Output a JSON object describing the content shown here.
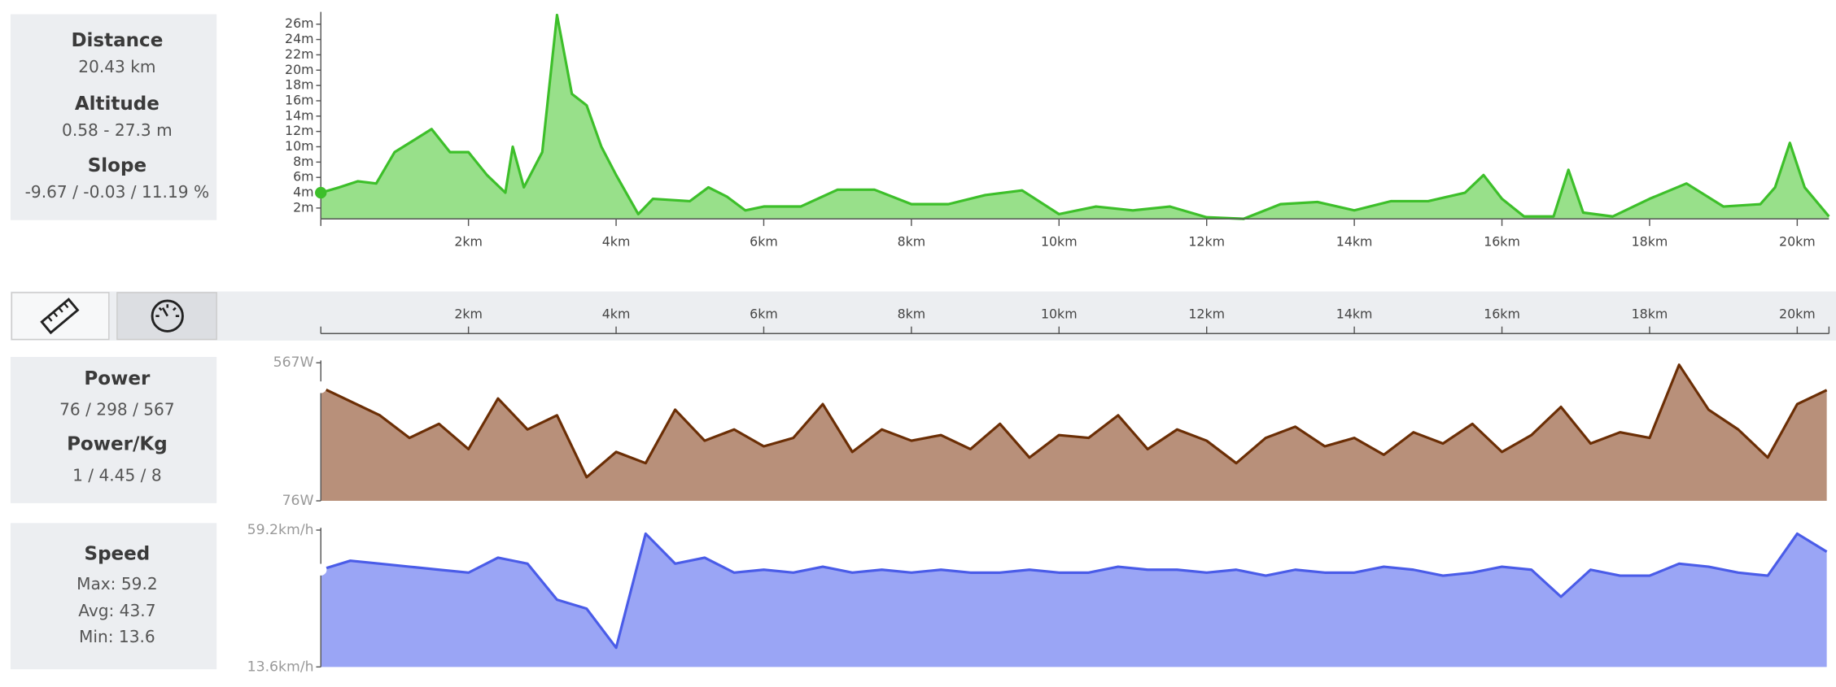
{
  "summary": {
    "route": [
      {
        "label": "Distance",
        "value": "20.43 km"
      },
      {
        "label": "Altitude",
        "value": "0.58 - 27.3 m"
      },
      {
        "label": "Slope",
        "value": "-9.67 / -0.03 / 11.19 %"
      }
    ],
    "power": [
      {
        "label": "Power",
        "value": "76 / 298 / 567"
      },
      {
        "label": "Power/Kg",
        "value": "1 / 4.45 / 8"
      }
    ],
    "speed": {
      "label": "Speed",
      "lines": [
        "Max: 59.2",
        "Avg: 43.7",
        "Min: 13.6"
      ]
    }
  },
  "chart_data": [
    {
      "type": "area",
      "color": "#3dbf2a",
      "fill_color": "#98e08a",
      "x": [
        0,
        0.25,
        0.5,
        0.75,
        1.0,
        1.25,
        1.5,
        1.75,
        2.0,
        2.25,
        2.5,
        2.6,
        2.75,
        3.0,
        3.2,
        3.4,
        3.6,
        3.8,
        4.0,
        4.3,
        4.5,
        5.0,
        5.25,
        5.5,
        5.75,
        6.0,
        6.5,
        7.0,
        7.5,
        8.0,
        8.5,
        9.0,
        9.5,
        10.0,
        10.5,
        11.0,
        11.5,
        12.0,
        12.5,
        13.0,
        13.5,
        14.0,
        14.5,
        15.0,
        15.5,
        15.75,
        16.0,
        16.3,
        16.7,
        16.9,
        17.1,
        17.5,
        18.0,
        18.5,
        19.0,
        19.5,
        19.7,
        19.9,
        20.1,
        20.43
      ],
      "values": [
        4.0,
        4.7,
        5.5,
        5.2,
        9.3,
        10.8,
        12.3,
        9.3,
        9.3,
        6.3,
        4.0,
        10.0,
        4.7,
        9.3,
        27.2,
        16.9,
        15.4,
        10.0,
        6.3,
        1.2,
        3.2,
        2.9,
        4.7,
        3.5,
        1.7,
        2.2,
        2.2,
        4.4,
        4.4,
        2.5,
        2.5,
        3.7,
        4.3,
        1.2,
        2.2,
        1.7,
        2.2,
        0.8,
        0.6,
        2.5,
        2.8,
        1.7,
        2.9,
        2.9,
        4.0,
        6.3,
        3.2,
        0.9,
        0.9,
        7.0,
        1.4,
        0.9,
        3.2,
        5.2,
        2.2,
        2.5,
        4.7,
        10.5,
        4.7,
        0.9
      ],
      "xlim": [
        0,
        20.43
      ],
      "ylim": [
        0.58,
        27.3
      ],
      "xticks": [
        {
          "value": 2,
          "label": "2km"
        },
        {
          "value": 4,
          "label": "4km"
        },
        {
          "value": 6,
          "label": "6km"
        },
        {
          "value": 8,
          "label": "8km"
        },
        {
          "value": 10,
          "label": "10km"
        },
        {
          "value": 12,
          "label": "12km"
        },
        {
          "value": 14,
          "label": "14km"
        },
        {
          "value": 16,
          "label": "16km"
        },
        {
          "value": 18,
          "label": "18km"
        },
        {
          "value": 20,
          "label": "20km"
        }
      ],
      "yticks": [
        {
          "value": 2,
          "label": "2m"
        },
        {
          "value": 4,
          "label": "4m"
        },
        {
          "value": 6,
          "label": "6m"
        },
        {
          "value": 8,
          "label": "8m"
        },
        {
          "value": 10,
          "label": "10m"
        },
        {
          "value": 12,
          "label": "12m"
        },
        {
          "value": 14,
          "label": "14m"
        },
        {
          "value": 16,
          "label": "16m"
        },
        {
          "value": 18,
          "label": "18m"
        },
        {
          "value": 20,
          "label": "20m"
        },
        {
          "value": 22,
          "label": "22m"
        },
        {
          "value": 24,
          "label": "24m"
        },
        {
          "value": 26,
          "label": "26m"
        }
      ]
    },
    {
      "type": "area",
      "color": "#6b2e05",
      "fill_color": "#b8907a",
      "x": [
        0,
        0.4,
        0.8,
        1.2,
        1.6,
        2.0,
        2.4,
        2.8,
        3.2,
        3.6,
        4.0,
        4.4,
        4.8,
        5.2,
        5.6,
        6.0,
        6.4,
        6.8,
        7.2,
        7.6,
        8.0,
        8.4,
        8.8,
        9.2,
        9.6,
        10.0,
        10.4,
        10.8,
        11.2,
        11.6,
        12.0,
        12.4,
        12.8,
        13.2,
        13.6,
        14.0,
        14.4,
        14.8,
        15.2,
        15.6,
        16.0,
        16.4,
        16.8,
        17.2,
        17.6,
        18.0,
        18.4,
        18.8,
        19.2,
        19.6,
        20.0,
        20.4
      ],
      "values": [
        480,
        430,
        380,
        300,
        350,
        260,
        440,
        330,
        380,
        160,
        250,
        210,
        400,
        290,
        330,
        270,
        300,
        420,
        250,
        330,
        290,
        310,
        260,
        350,
        230,
        310,
        300,
        380,
        260,
        330,
        290,
        210,
        300,
        340,
        270,
        300,
        240,
        320,
        280,
        350,
        250,
        310,
        410,
        280,
        320,
        300,
        560,
        400,
        330,
        230,
        420,
        470
      ],
      "xlim": [
        0,
        20.43
      ],
      "ylim": [
        76,
        567
      ],
      "xticks": [
        {
          "value": 2,
          "label": "2km"
        },
        {
          "value": 4,
          "label": "4km"
        },
        {
          "value": 6,
          "label": "6km"
        },
        {
          "value": 8,
          "label": "8km"
        },
        {
          "value": 10,
          "label": "10km"
        },
        {
          "value": 12,
          "label": "12km"
        },
        {
          "value": 14,
          "label": "14km"
        },
        {
          "value": 16,
          "label": "16km"
        },
        {
          "value": 18,
          "label": "18km"
        },
        {
          "value": 20,
          "label": "20km"
        }
      ],
      "yticks": [
        {
          "value": 76,
          "label": "76W"
        },
        {
          "value": 567,
          "label": "567W"
        }
      ]
    },
    {
      "type": "area",
      "color": "#4a5ce8",
      "fill_color": "#9aa5f5",
      "x": [
        0,
        0.4,
        0.8,
        1.2,
        1.6,
        2.0,
        2.4,
        2.8,
        3.2,
        3.6,
        4.0,
        4.4,
        4.8,
        5.2,
        5.6,
        6.0,
        6.4,
        6.8,
        7.2,
        7.6,
        8.0,
        8.4,
        8.8,
        9.2,
        9.6,
        10.0,
        10.4,
        10.8,
        11.2,
        11.6,
        12.0,
        12.4,
        12.8,
        13.2,
        13.6,
        14.0,
        14.4,
        14.8,
        15.2,
        15.6,
        16.0,
        16.4,
        16.8,
        17.2,
        17.6,
        18.0,
        18.4,
        18.8,
        19.2,
        19.6,
        20.0,
        20.4
      ],
      "values": [
        46,
        49,
        48,
        47,
        46,
        45,
        50,
        48,
        36,
        33,
        20,
        58,
        48,
        50,
        45,
        46,
        45,
        47,
        45,
        46,
        45,
        46,
        45,
        45,
        46,
        45,
        45,
        47,
        46,
        46,
        45,
        46,
        44,
        46,
        45,
        45,
        47,
        46,
        44,
        45,
        47,
        46,
        37,
        46,
        44,
        44,
        48,
        47,
        45,
        44,
        58,
        52
      ],
      "xlim": [
        0,
        20.43
      ],
      "ylim": [
        13.6,
        59.2
      ],
      "yticks": [
        {
          "value": 13.6,
          "label": "13.6km/h"
        },
        {
          "value": 59.2,
          "label": "59.2km/h"
        }
      ]
    }
  ]
}
